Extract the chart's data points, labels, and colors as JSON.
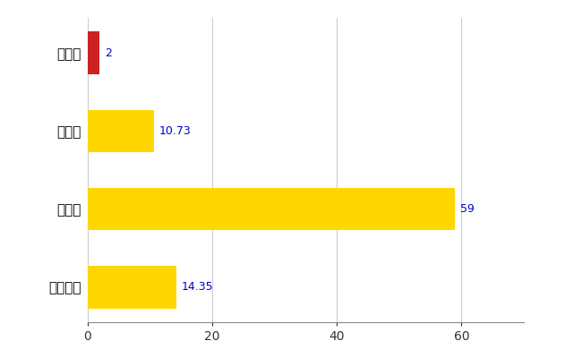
{
  "categories": [
    "全国平均",
    "県最大",
    "県平均",
    "軽米町"
  ],
  "values": [
    14.35,
    59,
    10.73,
    2
  ],
  "bar_colors": [
    "#FFD700",
    "#FFD700",
    "#FFD700",
    "#CC2222"
  ],
  "value_labels": [
    "14.35",
    "59",
    "10.73",
    "2"
  ],
  "xlim": [
    0,
    70
  ],
  "xticks": [
    0,
    20,
    40,
    60
  ],
  "grid_color": "#CCCCCC",
  "bg_color": "#FFFFFF",
  "label_color": "#0000CC",
  "bar_height": 0.55,
  "figsize": [
    6.5,
    4.0
  ],
  "dpi": 100
}
